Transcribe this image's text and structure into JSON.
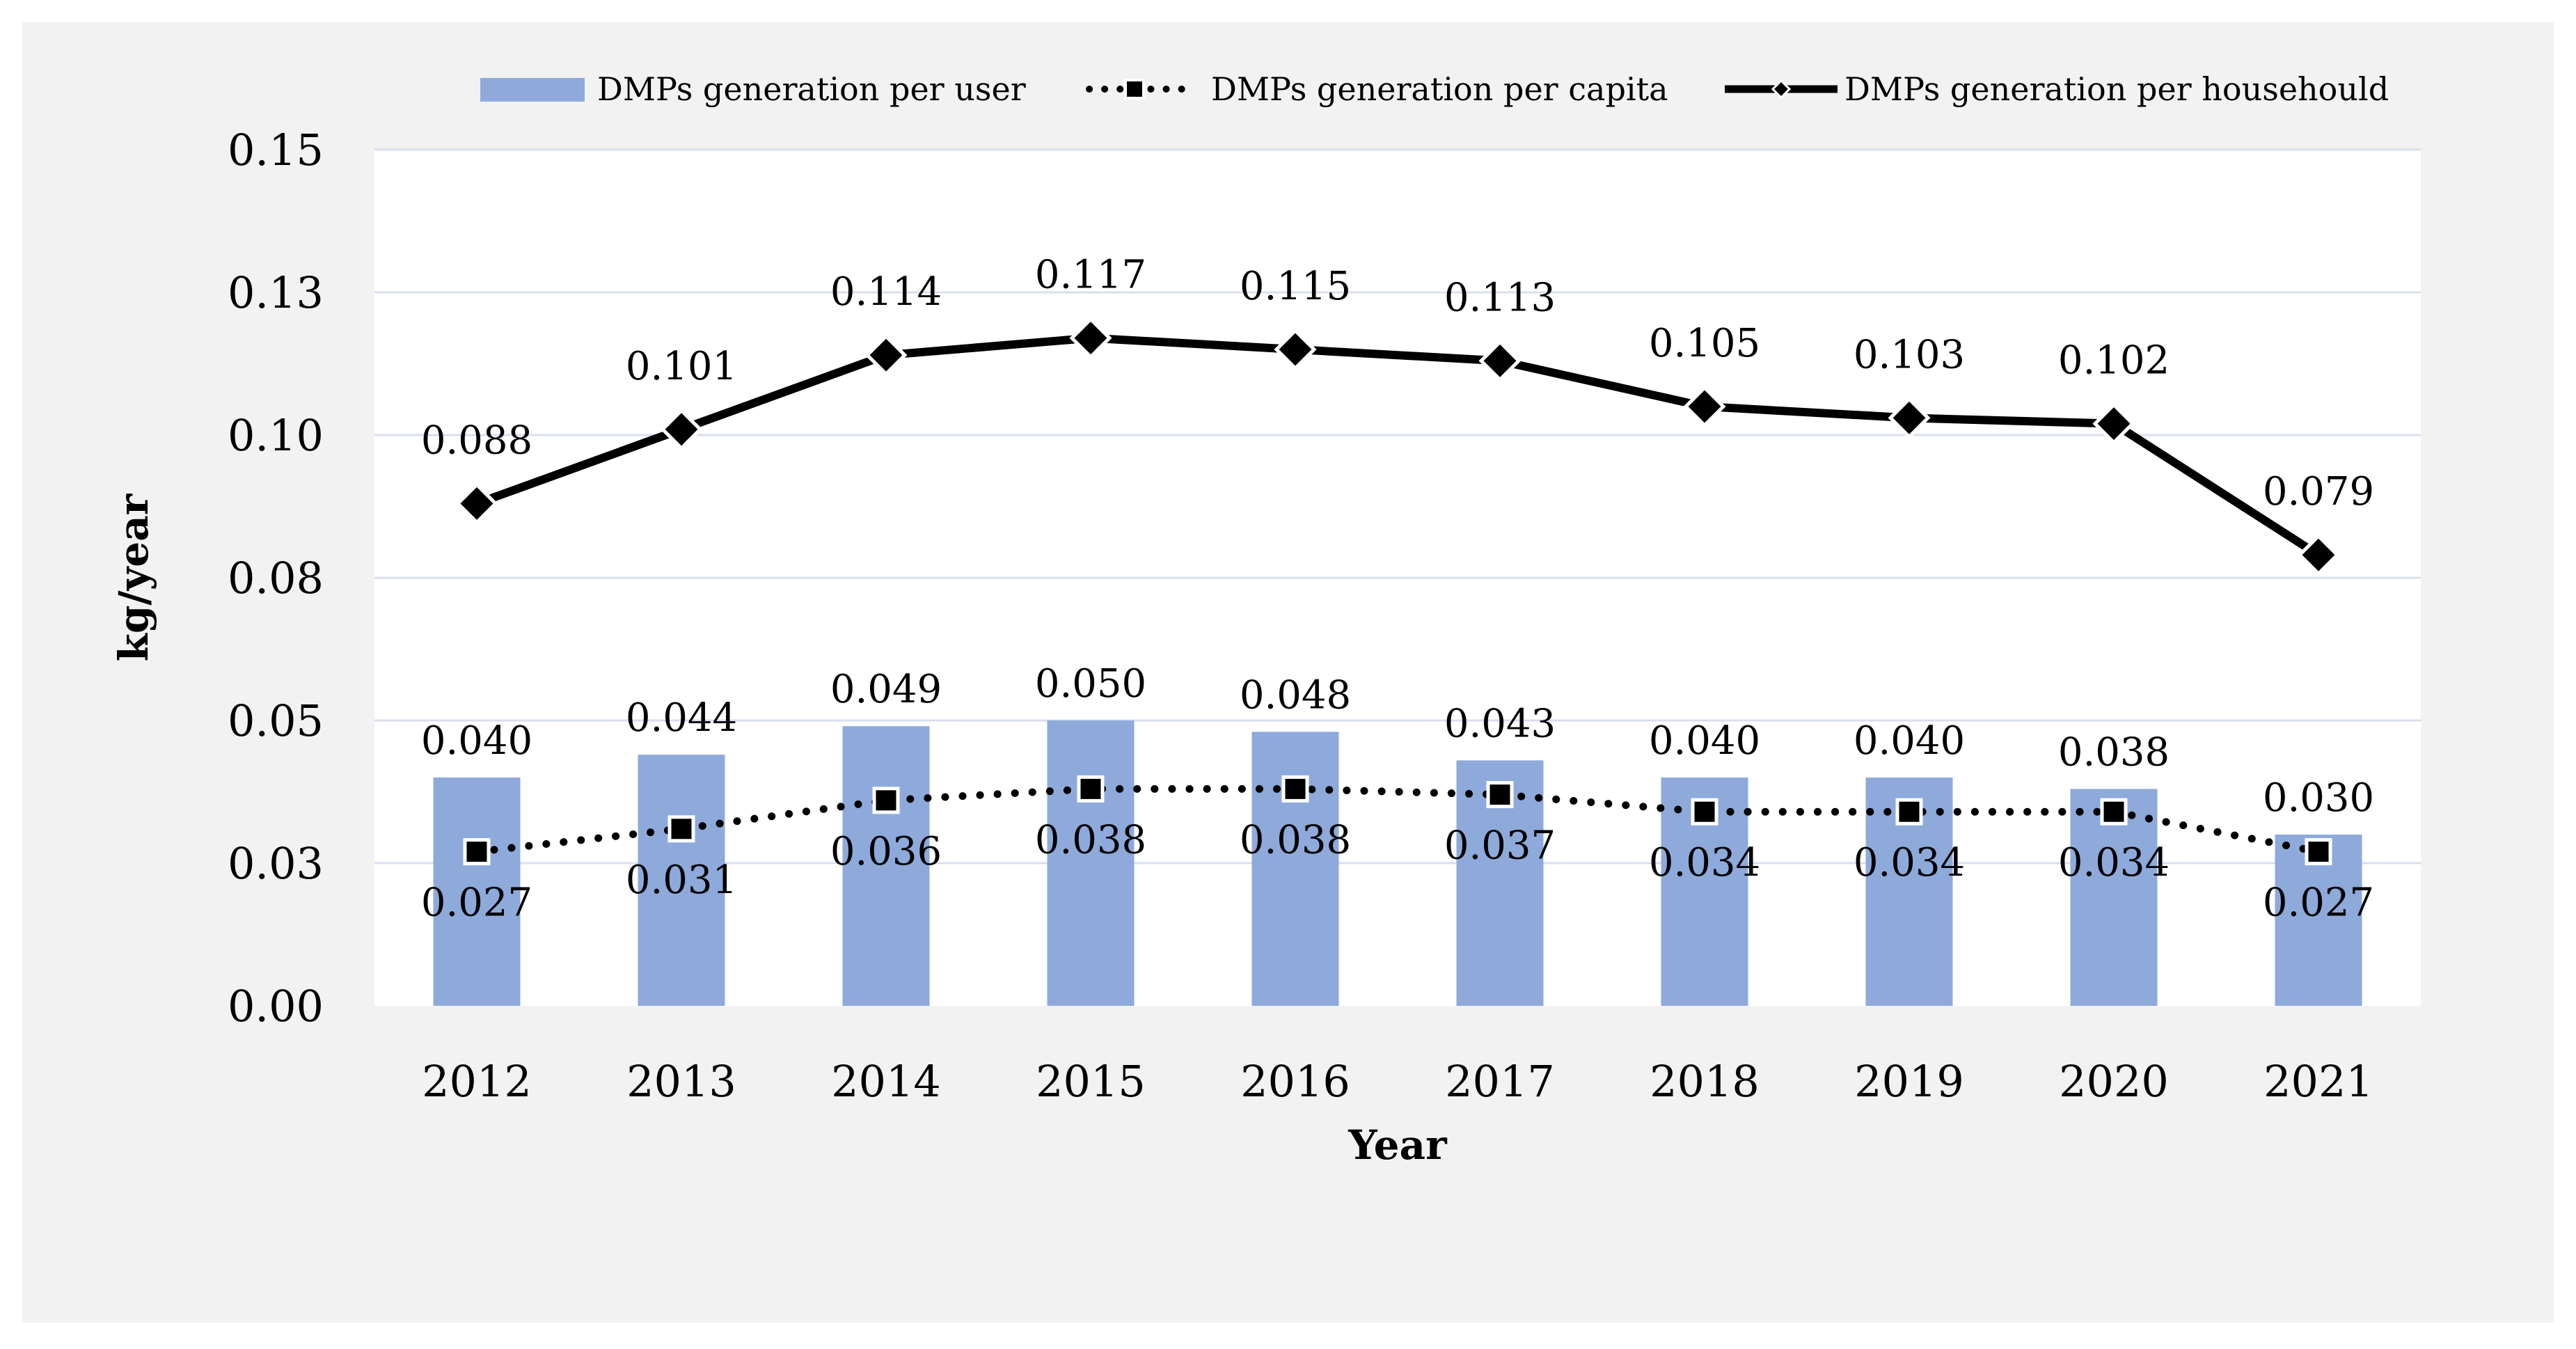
{
  "colors": {
    "outer_background": "#f2f2f2",
    "plot_background": "#ffffff",
    "gridline": "#d9dff0",
    "bar_fill": "#8eaadb",
    "line_color": "#000000",
    "marker_outline": "#ffffff",
    "text": "#000000"
  },
  "chart_data": {
    "type": "bar",
    "title": "",
    "xlabel": "Year",
    "ylabel": "kg/year",
    "categories": [
      "2012",
      "2013",
      "2014",
      "2015",
      "2016",
      "2017",
      "2018",
      "2019",
      "2020",
      "2021"
    ],
    "ylim": [
      0,
      0.15
    ],
    "yticks": [
      0,
      0.025,
      0.05,
      0.075,
      0.1,
      0.125,
      0.15
    ],
    "ytick_labels": [
      "0.00",
      "0.03",
      "0.05",
      "0.08",
      "0.10",
      "0.13",
      "0.15"
    ],
    "grid": true,
    "legend_position": "top",
    "series": [
      {
        "name": "DMPs generation per user",
        "kind": "bar",
        "values": [
          0.04,
          0.044,
          0.049,
          0.05,
          0.048,
          0.043,
          0.04,
          0.04,
          0.038,
          0.03
        ],
        "labels": [
          "0.040",
          "0.044",
          "0.049",
          "0.050",
          "0.048",
          "0.043",
          "0.040",
          "0.040",
          "0.038",
          "0.030"
        ],
        "label_position": "above"
      },
      {
        "name": "DMPs generation per capita",
        "kind": "line",
        "line_style": "dotted",
        "marker": "square",
        "values": [
          0.027,
          0.031,
          0.036,
          0.038,
          0.038,
          0.037,
          0.034,
          0.034,
          0.034,
          0.027
        ],
        "labels": [
          "0.027",
          "0.031",
          "0.036",
          "0.038",
          "0.038",
          "0.037",
          "0.034",
          "0.034",
          "0.034",
          "0.027"
        ],
        "label_position": "below"
      },
      {
        "name": "DMPs generation per househould",
        "kind": "line",
        "line_style": "solid",
        "marker": "diamond",
        "values": [
          0.088,
          0.101,
          0.114,
          0.117,
          0.115,
          0.113,
          0.105,
          0.103,
          0.102,
          0.079
        ],
        "labels": [
          "0.088",
          "0.101",
          "0.114",
          "0.117",
          "0.115",
          "0.113",
          "0.105",
          "0.103",
          "0.102",
          "0.079"
        ],
        "label_position": "above"
      }
    ]
  }
}
